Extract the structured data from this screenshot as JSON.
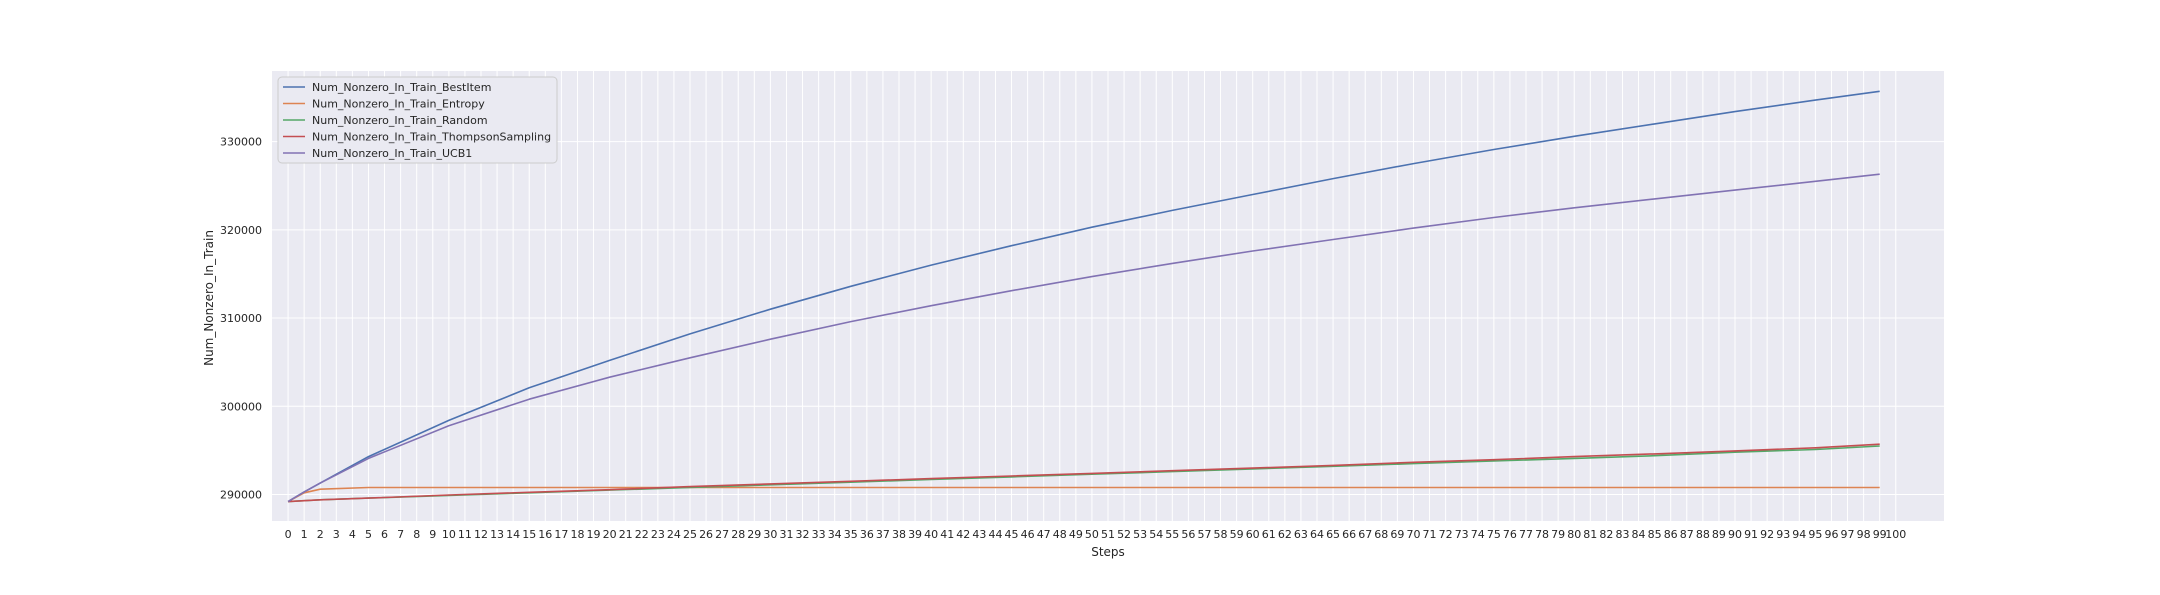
{
  "chart_data": {
    "type": "line",
    "title": "",
    "xlabel": "Steps",
    "ylabel": "Num_Nonzero_In_Train",
    "xlim": [
      -1,
      103
    ],
    "ylim": [
      287000,
      338000
    ],
    "x_ticks": [
      0,
      1,
      2,
      3,
      4,
      5,
      6,
      7,
      8,
      9,
      10,
      11,
      12,
      13,
      14,
      15,
      16,
      17,
      18,
      19,
      20,
      21,
      22,
      23,
      24,
      25,
      26,
      27,
      28,
      29,
      30,
      31,
      32,
      33,
      34,
      35,
      36,
      37,
      38,
      39,
      40,
      41,
      42,
      43,
      44,
      45,
      46,
      47,
      48,
      49,
      50,
      51,
      52,
      53,
      54,
      55,
      56,
      57,
      58,
      59,
      60,
      61,
      62,
      63,
      64,
      65,
      66,
      67,
      68,
      69,
      70,
      71,
      72,
      73,
      74,
      75,
      76,
      77,
      78,
      79,
      80,
      81,
      82,
      83,
      84,
      85,
      86,
      87,
      88,
      89,
      90,
      91,
      92,
      93,
      94,
      95,
      96,
      97,
      98,
      99,
      100
    ],
    "y_ticks": [
      290000,
      300000,
      310000,
      320000,
      330000
    ],
    "grid": true,
    "legend_position": "top-left",
    "x": [
      0,
      1,
      2,
      5,
      10,
      15,
      20,
      25,
      30,
      35,
      40,
      45,
      50,
      55,
      60,
      65,
      70,
      75,
      80,
      85,
      90,
      95,
      99
    ],
    "series": [
      {
        "name": "Num_Nonzero_In_Train_BestItem",
        "color": "#4c72b0",
        "values": [
          289200,
          290300,
          291300,
          294300,
          298400,
          302100,
          305200,
          308200,
          311000,
          313600,
          316000,
          318200,
          320300,
          322200,
          324000,
          325800,
          327500,
          329100,
          330600,
          332000,
          333400,
          334700,
          335700
        ]
      },
      {
        "name": "Num_Nonzero_In_Train_Entropy",
        "color": "#dd8452",
        "values": [
          289200,
          290200,
          290600,
          290800,
          290800,
          290800,
          290800,
          290800,
          290800,
          290800,
          290800,
          290800,
          290800,
          290800,
          290800,
          290800,
          290800,
          290800,
          290800,
          290800,
          290800,
          290800,
          290800
        ]
      },
      {
        "name": "Num_Nonzero_In_Train_Random",
        "color": "#55a868",
        "values": [
          289200,
          289300,
          289400,
          289600,
          289900,
          290200,
          290500,
          290800,
          291100,
          291400,
          291700,
          292000,
          292300,
          292600,
          292900,
          293200,
          293500,
          293800,
          294100,
          294400,
          294800,
          295100,
          295500
        ]
      },
      {
        "name": "Num_Nonzero_In_Train_ThompsonSampling",
        "color": "#c44e52",
        "values": [
          289200,
          289300,
          289400,
          289600,
          289950,
          290250,
          290550,
          290900,
          291200,
          291500,
          291800,
          292100,
          292400,
          292700,
          293000,
          293300,
          293650,
          293950,
          294300,
          294600,
          294950,
          295300,
          295700
        ]
      },
      {
        "name": "Num_Nonzero_In_Train_UCB1",
        "color": "#8172b3",
        "values": [
          289200,
          290300,
          291300,
          294100,
          297800,
          300800,
          303300,
          305500,
          307600,
          309600,
          311400,
          313100,
          314700,
          316200,
          317600,
          318900,
          320200,
          321400,
          322500,
          323500,
          324500,
          325500,
          326300
        ]
      }
    ]
  }
}
